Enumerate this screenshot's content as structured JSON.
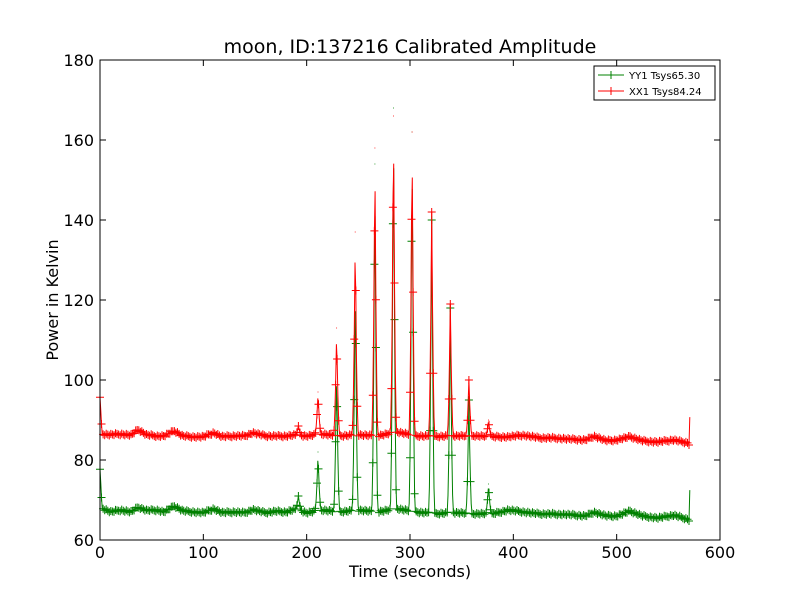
{
  "chart_data": {
    "type": "line",
    "title": "moon, ID:137216 Calibrated Amplitude",
    "xlabel": "Time (seconds)",
    "ylabel": "Power in Kelvin",
    "xlim": [
      0,
      600
    ],
    "ylim": [
      60,
      180
    ],
    "xticks": [
      "0",
      "100",
      "200",
      "300",
      "400",
      "500",
      "600"
    ],
    "yticks": [
      "60",
      "80",
      "100",
      "120",
      "140",
      "160",
      "180"
    ],
    "grid": false,
    "legend_position": "top-right",
    "marker": "plus",
    "series": [
      {
        "name": "YY1 Tsys65.30",
        "color": "#008000",
        "baseline": [
          [
            0,
            78
          ],
          [
            2,
            68
          ],
          [
            10,
            67
          ],
          [
            20,
            67.5
          ],
          [
            30,
            67
          ],
          [
            37,
            68.2
          ],
          [
            45,
            67.4
          ],
          [
            55,
            67.5
          ],
          [
            62,
            67
          ],
          [
            72,
            68.5
          ],
          [
            80,
            67.3
          ],
          [
            92,
            67
          ],
          [
            100,
            66.8
          ],
          [
            110,
            67.8
          ],
          [
            118,
            66.8
          ],
          [
            130,
            67
          ],
          [
            140,
            66.8
          ],
          [
            148,
            67.6
          ],
          [
            160,
            66.8
          ],
          [
            170,
            67.2
          ],
          [
            180,
            67
          ],
          [
            190,
            67.8
          ],
          [
            200,
            66.8
          ],
          [
            215,
            67.5
          ],
          [
            232,
            67
          ],
          [
            250,
            67.5
          ],
          [
            268,
            67
          ],
          [
            288,
            67.8
          ],
          [
            305,
            67
          ],
          [
            325,
            66.5
          ],
          [
            345,
            66.8
          ],
          [
            362,
            66.5
          ],
          [
            380,
            66.5
          ],
          [
            395,
            67.5
          ],
          [
            410,
            67
          ],
          [
            425,
            66.5
          ],
          [
            440,
            66.5
          ],
          [
            455,
            66.3
          ],
          [
            470,
            66
          ],
          [
            478,
            67
          ],
          [
            490,
            66
          ],
          [
            500,
            66
          ],
          [
            513,
            67.2
          ],
          [
            525,
            66
          ],
          [
            540,
            65.5
          ],
          [
            555,
            66.2
          ],
          [
            565,
            65.5
          ],
          [
            569,
            65.2
          ],
          [
            570,
            65
          ],
          [
            571,
            75
          ]
        ],
        "peaks": [
          [
            192,
            71
          ],
          [
            211,
            82
          ],
          [
            229,
            104
          ],
          [
            247,
            126
          ],
          [
            266,
            154
          ],
          [
            284,
            168
          ],
          [
            302,
            162
          ],
          [
            321,
            140
          ],
          [
            339,
            118
          ],
          [
            357,
            95
          ],
          [
            376,
            74
          ]
        ]
      },
      {
        "name": "XX1 Tsys84.24",
        "color": "#ff0000",
        "baseline": [
          [
            0,
            96
          ],
          [
            2,
            86.5
          ],
          [
            10,
            86.3
          ],
          [
            20,
            86.5
          ],
          [
            30,
            86.2
          ],
          [
            37,
            87.6
          ],
          [
            45,
            86.3
          ],
          [
            55,
            86
          ],
          [
            62,
            86
          ],
          [
            72,
            87.3
          ],
          [
            80,
            86
          ],
          [
            92,
            85.8
          ],
          [
            100,
            85.8
          ],
          [
            110,
            86.8
          ],
          [
            118,
            85.8
          ],
          [
            130,
            86
          ],
          [
            140,
            86
          ],
          [
            148,
            86.8
          ],
          [
            160,
            86
          ],
          [
            170,
            86
          ],
          [
            180,
            86
          ],
          [
            190,
            86.3
          ],
          [
            200,
            86
          ],
          [
            215,
            86.5
          ],
          [
            232,
            86
          ],
          [
            250,
            86.3
          ],
          [
            268,
            86
          ],
          [
            288,
            87
          ],
          [
            305,
            86
          ],
          [
            325,
            85.8
          ],
          [
            345,
            86
          ],
          [
            362,
            86
          ],
          [
            380,
            85.8
          ],
          [
            395,
            85.8
          ],
          [
            410,
            86.2
          ],
          [
            425,
            85.5
          ],
          [
            440,
            85.5
          ],
          [
            455,
            85.2
          ],
          [
            470,
            85
          ],
          [
            478,
            86
          ],
          [
            490,
            84.8
          ],
          [
            500,
            85
          ],
          [
            513,
            85.8
          ],
          [
            525,
            84.8
          ],
          [
            540,
            84.5
          ],
          [
            555,
            85
          ],
          [
            565,
            84.5
          ],
          [
            569,
            84.3
          ],
          [
            570,
            84
          ],
          [
            571,
            93
          ]
        ],
        "peaks": [
          [
            192,
            88.5
          ],
          [
            211,
            97
          ],
          [
            229,
            113
          ],
          [
            247,
            137
          ],
          [
            266,
            158
          ],
          [
            284,
            166
          ],
          [
            302,
            162
          ],
          [
            321,
            142
          ],
          [
            339,
            119
          ],
          [
            357,
            100
          ],
          [
            376,
            90
          ]
        ]
      }
    ]
  }
}
